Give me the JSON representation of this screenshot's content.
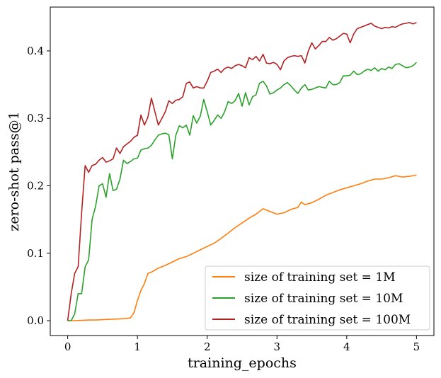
{
  "chart_data": {
    "type": "line",
    "title": "",
    "xlabel": "training_epochs",
    "ylabel": "zero-shot pass@1",
    "xlim": [
      -0.25,
      5.25
    ],
    "ylim": [
      -0.022,
      0.465
    ],
    "xticks": [
      0,
      1,
      2,
      3,
      4,
      5
    ],
    "yticks": [
      0.0,
      0.1,
      0.2,
      0.3,
      0.4
    ],
    "xtick_labels": [
      "0",
      "1",
      "2",
      "3",
      "4",
      "5"
    ],
    "ytick_labels": [
      "0.0",
      "0.1",
      "0.2",
      "0.3",
      "0.4"
    ],
    "grid": false,
    "legend_position": "lower-right",
    "series": [
      {
        "name": "size of training set = 1M",
        "color": "#ff7f0e",
        "x": [
          0,
          0.1,
          0.2,
          0.3,
          0.4,
          0.5,
          0.6,
          0.7,
          0.8,
          0.9,
          0.95,
          1.0,
          1.05,
          1.1,
          1.15,
          1.2,
          1.3,
          1.4,
          1.5,
          1.6,
          1.7,
          1.8,
          1.9,
          2.0,
          2.1,
          2.2,
          2.3,
          2.4,
          2.5,
          2.6,
          2.7,
          2.8,
          2.9,
          3.0,
          3.1,
          3.2,
          3.3,
          3.35,
          3.4,
          3.5,
          3.6,
          3.7,
          3.8,
          3.9,
          4.0,
          4.1,
          4.2,
          4.3,
          4.4,
          4.5,
          4.6,
          4.7,
          4.8,
          4.9,
          5.0
        ],
        "values": [
          0.0,
          0.0,
          0.0005,
          0.001,
          0.001,
          0.0015,
          0.002,
          0.0025,
          0.003,
          0.004,
          0.012,
          0.03,
          0.045,
          0.055,
          0.07,
          0.072,
          0.078,
          0.082,
          0.087,
          0.092,
          0.095,
          0.1,
          0.105,
          0.11,
          0.115,
          0.122,
          0.13,
          0.138,
          0.145,
          0.152,
          0.158,
          0.166,
          0.162,
          0.158,
          0.16,
          0.165,
          0.168,
          0.176,
          0.172,
          0.175,
          0.18,
          0.186,
          0.19,
          0.194,
          0.197,
          0.2,
          0.203,
          0.207,
          0.21,
          0.21,
          0.212,
          0.215,
          0.213,
          0.214,
          0.216
        ]
      },
      {
        "name": "size of training set = 10M",
        "color": "#2ca02c",
        "x": [
          0,
          0.05,
          0.1,
          0.15,
          0.2,
          0.25,
          0.3,
          0.35,
          0.4,
          0.45,
          0.5,
          0.55,
          0.6,
          0.65,
          0.7,
          0.75,
          0.8,
          0.85,
          0.9,
          0.95,
          1.0,
          1.05,
          1.1,
          1.15,
          1.2,
          1.25,
          1.3,
          1.35,
          1.4,
          1.45,
          1.5,
          1.55,
          1.6,
          1.65,
          1.7,
          1.75,
          1.8,
          1.85,
          1.9,
          1.95,
          2.0,
          2.05,
          2.1,
          2.15,
          2.2,
          2.25,
          2.3,
          2.35,
          2.4,
          2.45,
          2.5,
          2.55,
          2.6,
          2.65,
          2.7,
          2.75,
          2.8,
          2.85,
          2.9,
          2.95,
          3.0,
          3.05,
          3.1,
          3.15,
          3.2,
          3.25,
          3.3,
          3.35,
          3.4,
          3.45,
          3.5,
          3.55,
          3.6,
          3.65,
          3.7,
          3.75,
          3.8,
          3.85,
          3.9,
          3.95,
          4.0,
          4.05,
          4.1,
          4.15,
          4.2,
          4.25,
          4.3,
          4.35,
          4.4,
          4.45,
          4.5,
          4.55,
          4.6,
          4.65,
          4.7,
          4.75,
          4.8,
          4.85,
          4.9,
          4.95,
          5.0
        ],
        "values": [
          0.0,
          0.0,
          0.01,
          0.04,
          0.04,
          0.08,
          0.09,
          0.15,
          0.17,
          0.2,
          0.203,
          0.183,
          0.218,
          0.193,
          0.195,
          0.21,
          0.238,
          0.233,
          0.236,
          0.24,
          0.241,
          0.253,
          0.255,
          0.256,
          0.26,
          0.268,
          0.275,
          0.277,
          0.278,
          0.276,
          0.24,
          0.275,
          0.289,
          0.286,
          0.29,
          0.275,
          0.304,
          0.293,
          0.303,
          0.328,
          0.31,
          0.29,
          0.297,
          0.305,
          0.3,
          0.31,
          0.325,
          0.322,
          0.326,
          0.337,
          0.318,
          0.338,
          0.32,
          0.332,
          0.335,
          0.352,
          0.355,
          0.348,
          0.336,
          0.338,
          0.342,
          0.345,
          0.35,
          0.353,
          0.348,
          0.342,
          0.337,
          0.345,
          0.35,
          0.342,
          0.343,
          0.345,
          0.347,
          0.346,
          0.345,
          0.355,
          0.35,
          0.35,
          0.353,
          0.363,
          0.363,
          0.364,
          0.37,
          0.365,
          0.366,
          0.37,
          0.373,
          0.371,
          0.375,
          0.37,
          0.374,
          0.372,
          0.376,
          0.374,
          0.38,
          0.381,
          0.378,
          0.375,
          0.376,
          0.378,
          0.383
        ]
      },
      {
        "name": "size of training set = 100M",
        "color": "#b22222",
        "x": [
          0,
          0.05,
          0.1,
          0.15,
          0.2,
          0.25,
          0.3,
          0.35,
          0.4,
          0.45,
          0.5,
          0.55,
          0.6,
          0.65,
          0.7,
          0.75,
          0.8,
          0.85,
          0.9,
          0.95,
          1.0,
          1.05,
          1.1,
          1.15,
          1.2,
          1.25,
          1.3,
          1.35,
          1.4,
          1.45,
          1.5,
          1.55,
          1.6,
          1.65,
          1.7,
          1.75,
          1.8,
          1.85,
          1.9,
          1.95,
          2.0,
          2.05,
          2.1,
          2.15,
          2.2,
          2.25,
          2.3,
          2.35,
          2.4,
          2.45,
          2.5,
          2.55,
          2.6,
          2.65,
          2.7,
          2.75,
          2.8,
          2.85,
          2.9,
          2.95,
          3.0,
          3.05,
          3.1,
          3.15,
          3.2,
          3.25,
          3.3,
          3.35,
          3.4,
          3.45,
          3.5,
          3.55,
          3.6,
          3.65,
          3.7,
          3.75,
          3.8,
          3.85,
          3.9,
          3.95,
          4.0,
          4.05,
          4.1,
          4.15,
          4.2,
          4.25,
          4.3,
          4.35,
          4.4,
          4.45,
          4.5,
          4.55,
          4.6,
          4.65,
          4.7,
          4.75,
          4.8,
          4.85,
          4.9,
          4.95,
          5.0
        ],
        "values": [
          0.0,
          0.04,
          0.07,
          0.08,
          0.16,
          0.23,
          0.22,
          0.23,
          0.232,
          0.238,
          0.242,
          0.235,
          0.237,
          0.24,
          0.256,
          0.248,
          0.258,
          0.262,
          0.266,
          0.272,
          0.275,
          0.305,
          0.29,
          0.302,
          0.33,
          0.31,
          0.29,
          0.3,
          0.31,
          0.326,
          0.322,
          0.327,
          0.328,
          0.332,
          0.352,
          0.354,
          0.345,
          0.347,
          0.345,
          0.345,
          0.355,
          0.368,
          0.37,
          0.373,
          0.368,
          0.374,
          0.376,
          0.374,
          0.378,
          0.38,
          0.378,
          0.375,
          0.39,
          0.387,
          0.392,
          0.385,
          0.395,
          0.382,
          0.381,
          0.383,
          0.38,
          0.372,
          0.385,
          0.39,
          0.392,
          0.393,
          0.392,
          0.393,
          0.382,
          0.4,
          0.412,
          0.403,
          0.408,
          0.414,
          0.414,
          0.42,
          0.416,
          0.418,
          0.422,
          0.426,
          0.425,
          0.412,
          0.425,
          0.433,
          0.435,
          0.437,
          0.439,
          0.441,
          0.437,
          0.435,
          0.433,
          0.435,
          0.434,
          0.436,
          0.435,
          0.438,
          0.44,
          0.441,
          0.442,
          0.44,
          0.442
        ]
      }
    ]
  }
}
